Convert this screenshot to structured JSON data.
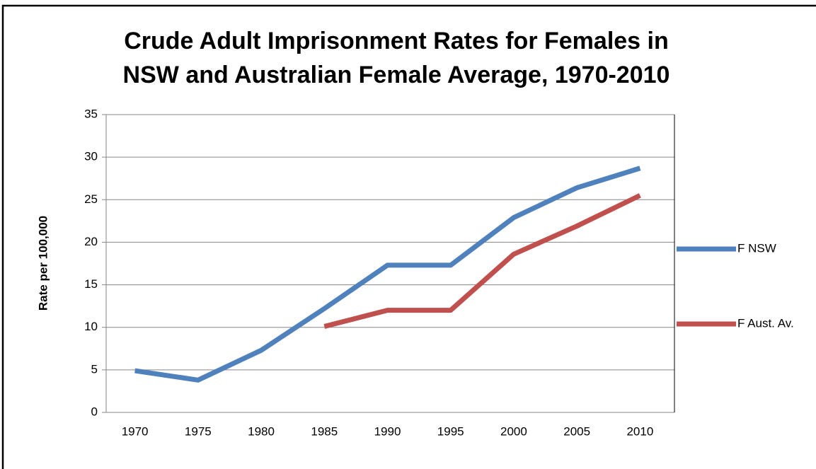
{
  "chart_data": {
    "type": "line",
    "title": [
      "Crude Adult Imprisonment Rates for Females in",
      "NSW and Australian Female Average, 1970-2010"
    ],
    "y_label": "Rate per 100,000",
    "categories": [
      "1970",
      "1975",
      "1980",
      "1985",
      "1990",
      "1995",
      "2000",
      "2005",
      "2010"
    ],
    "series": [
      {
        "name": "F NSW",
        "color": "#4f81bd",
        "values": [
          4.9,
          3.8,
          7.3,
          12.2,
          17.3,
          17.3,
          22.9,
          26.4,
          28.7
        ]
      },
      {
        "name": "F Aust. Av.",
        "color": "#c0504d",
        "values": [
          null,
          null,
          null,
          10.1,
          12.0,
          12.0,
          18.6,
          21.9,
          25.5
        ]
      }
    ],
    "ylim": [
      0,
      35
    ],
    "yticks": [
      0,
      5,
      10,
      15,
      20,
      25,
      30,
      35
    ],
    "grid": true,
    "legend": "right"
  }
}
